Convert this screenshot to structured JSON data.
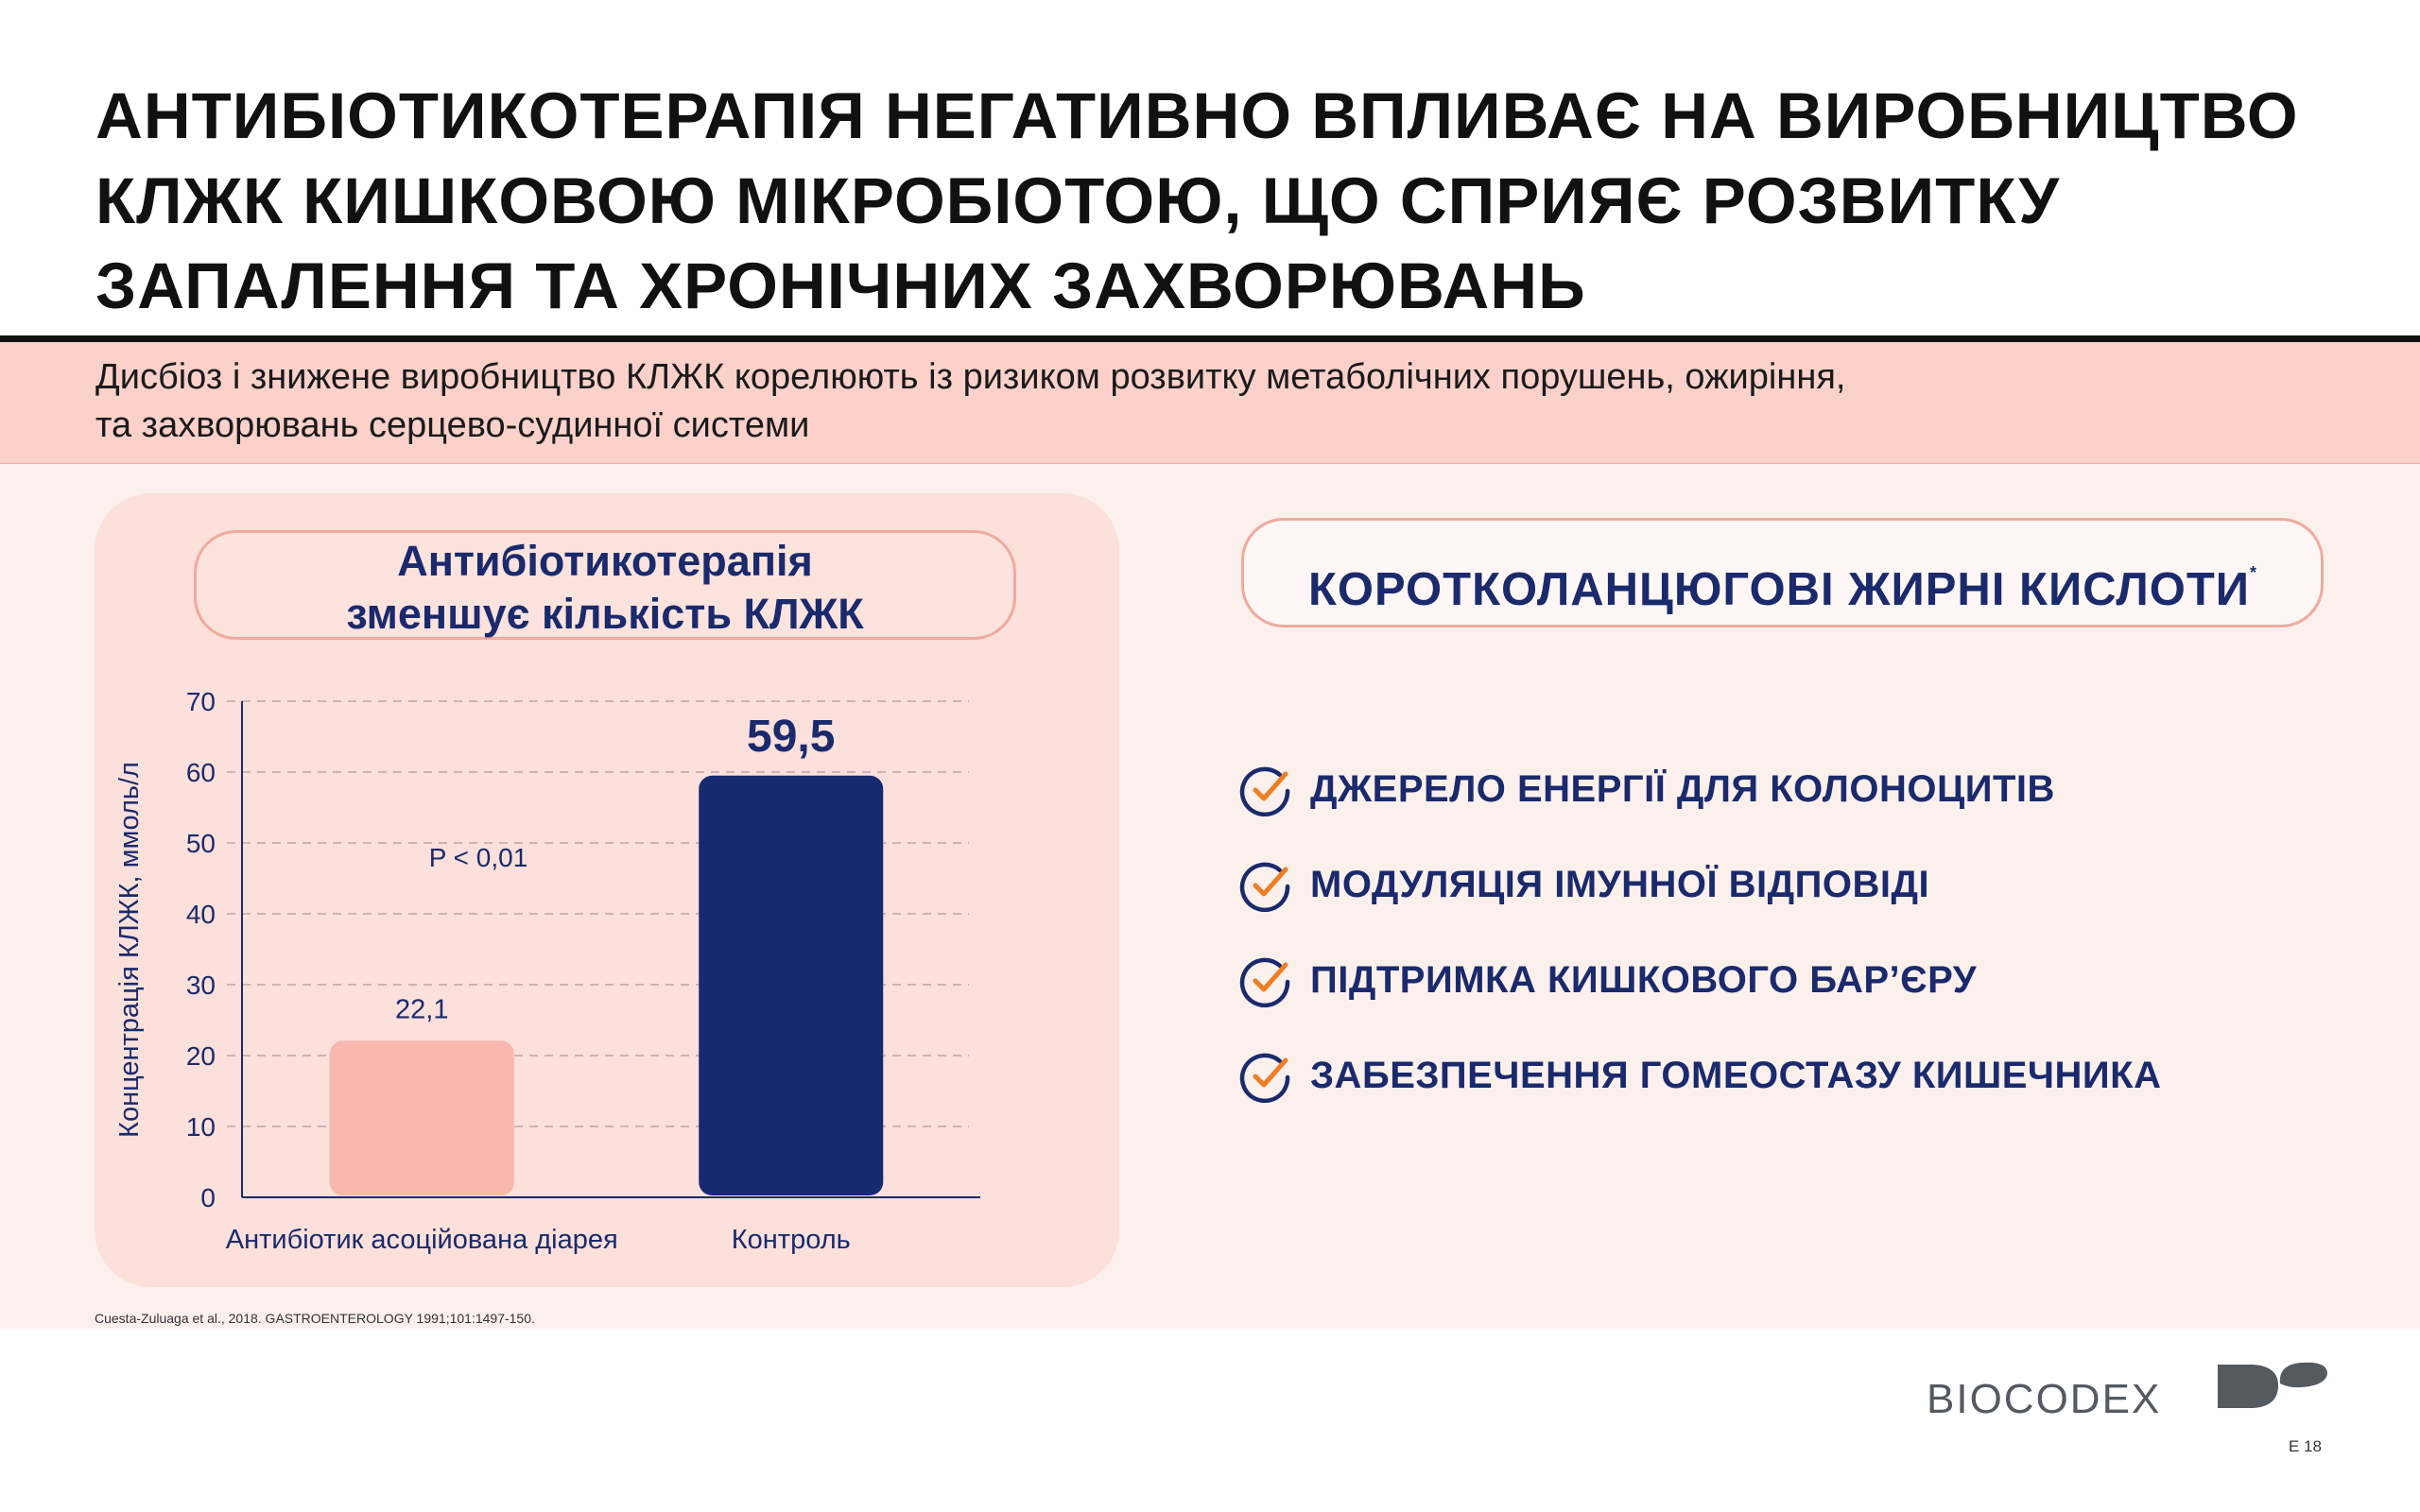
{
  "title_lines": [
    "АНТИБІОТИКОТЕРАПІЯ НЕГАТИВНО ВПЛИВАЄ НА ВИРОБНИЦТВО",
    "КЛЖК КИШКОВОЮ МІКРОБІОТОЮ, ЩО СПРИЯЄ РОЗВИТКУ",
    "ЗАПАЛЕННЯ ТА ХРОНІЧНИХ ЗАХВОРЮВАНЬ"
  ],
  "subtitle_lines": [
    "Дисбіоз і знижене виробництво КЛЖК корелюють із ризиком розвитку метаболічних порушень, ожиріння,",
    "та захворювань серцево-судинної системи"
  ],
  "chart_box_title": [
    "Антибіотикотерапія",
    "зменшує кількість КЛЖК"
  ],
  "chart_data": {
    "type": "bar",
    "categories": [
      "Антибіотик асоційована діарея",
      "Контроль"
    ],
    "values": [
      22.1,
      59.5
    ],
    "value_labels": [
      "22,1",
      "59,5"
    ],
    "ylabel": "Концентрація КЛЖК, ммоль/л",
    "ylim": [
      0,
      70
    ],
    "yticks": [
      0,
      10,
      20,
      30,
      40,
      50,
      60,
      70
    ],
    "annotation": "P < 0,01",
    "grid": true,
    "colors": [
      "#f8b8ad",
      "#172970"
    ]
  },
  "scfa": {
    "title": "КОРОТКОЛАНЦЮГОВІ ЖИРНІ КИСЛОТИ",
    "marker": "*",
    "benefits": [
      "ДЖЕРЕЛО ЕНЕРГІЇ ДЛЯ КОЛОНОЦИТІВ",
      "МОДУЛЯЦІЯ ІМУННОЇ ВІДПОВІДІ",
      "ПІДТРИМКА КИШКОВОГО БАР’ЄРУ",
      "ЗАБЕЗПЕЧЕННЯ ГОМЕОСТАЗУ КИШЕЧНИКА"
    ],
    "check_icon": "check-circle-icon"
  },
  "colors": {
    "navy": "#1a2a6c",
    "orange": "#ef7d22",
    "pink": "#fbd1ca"
  },
  "reference": "Cuesta-Zuluaga et al., 2018. GASTROENTEROLOGY 1991;101:1497-150.",
  "logo_text": "BIOCODEX",
  "page_number": "E 18"
}
